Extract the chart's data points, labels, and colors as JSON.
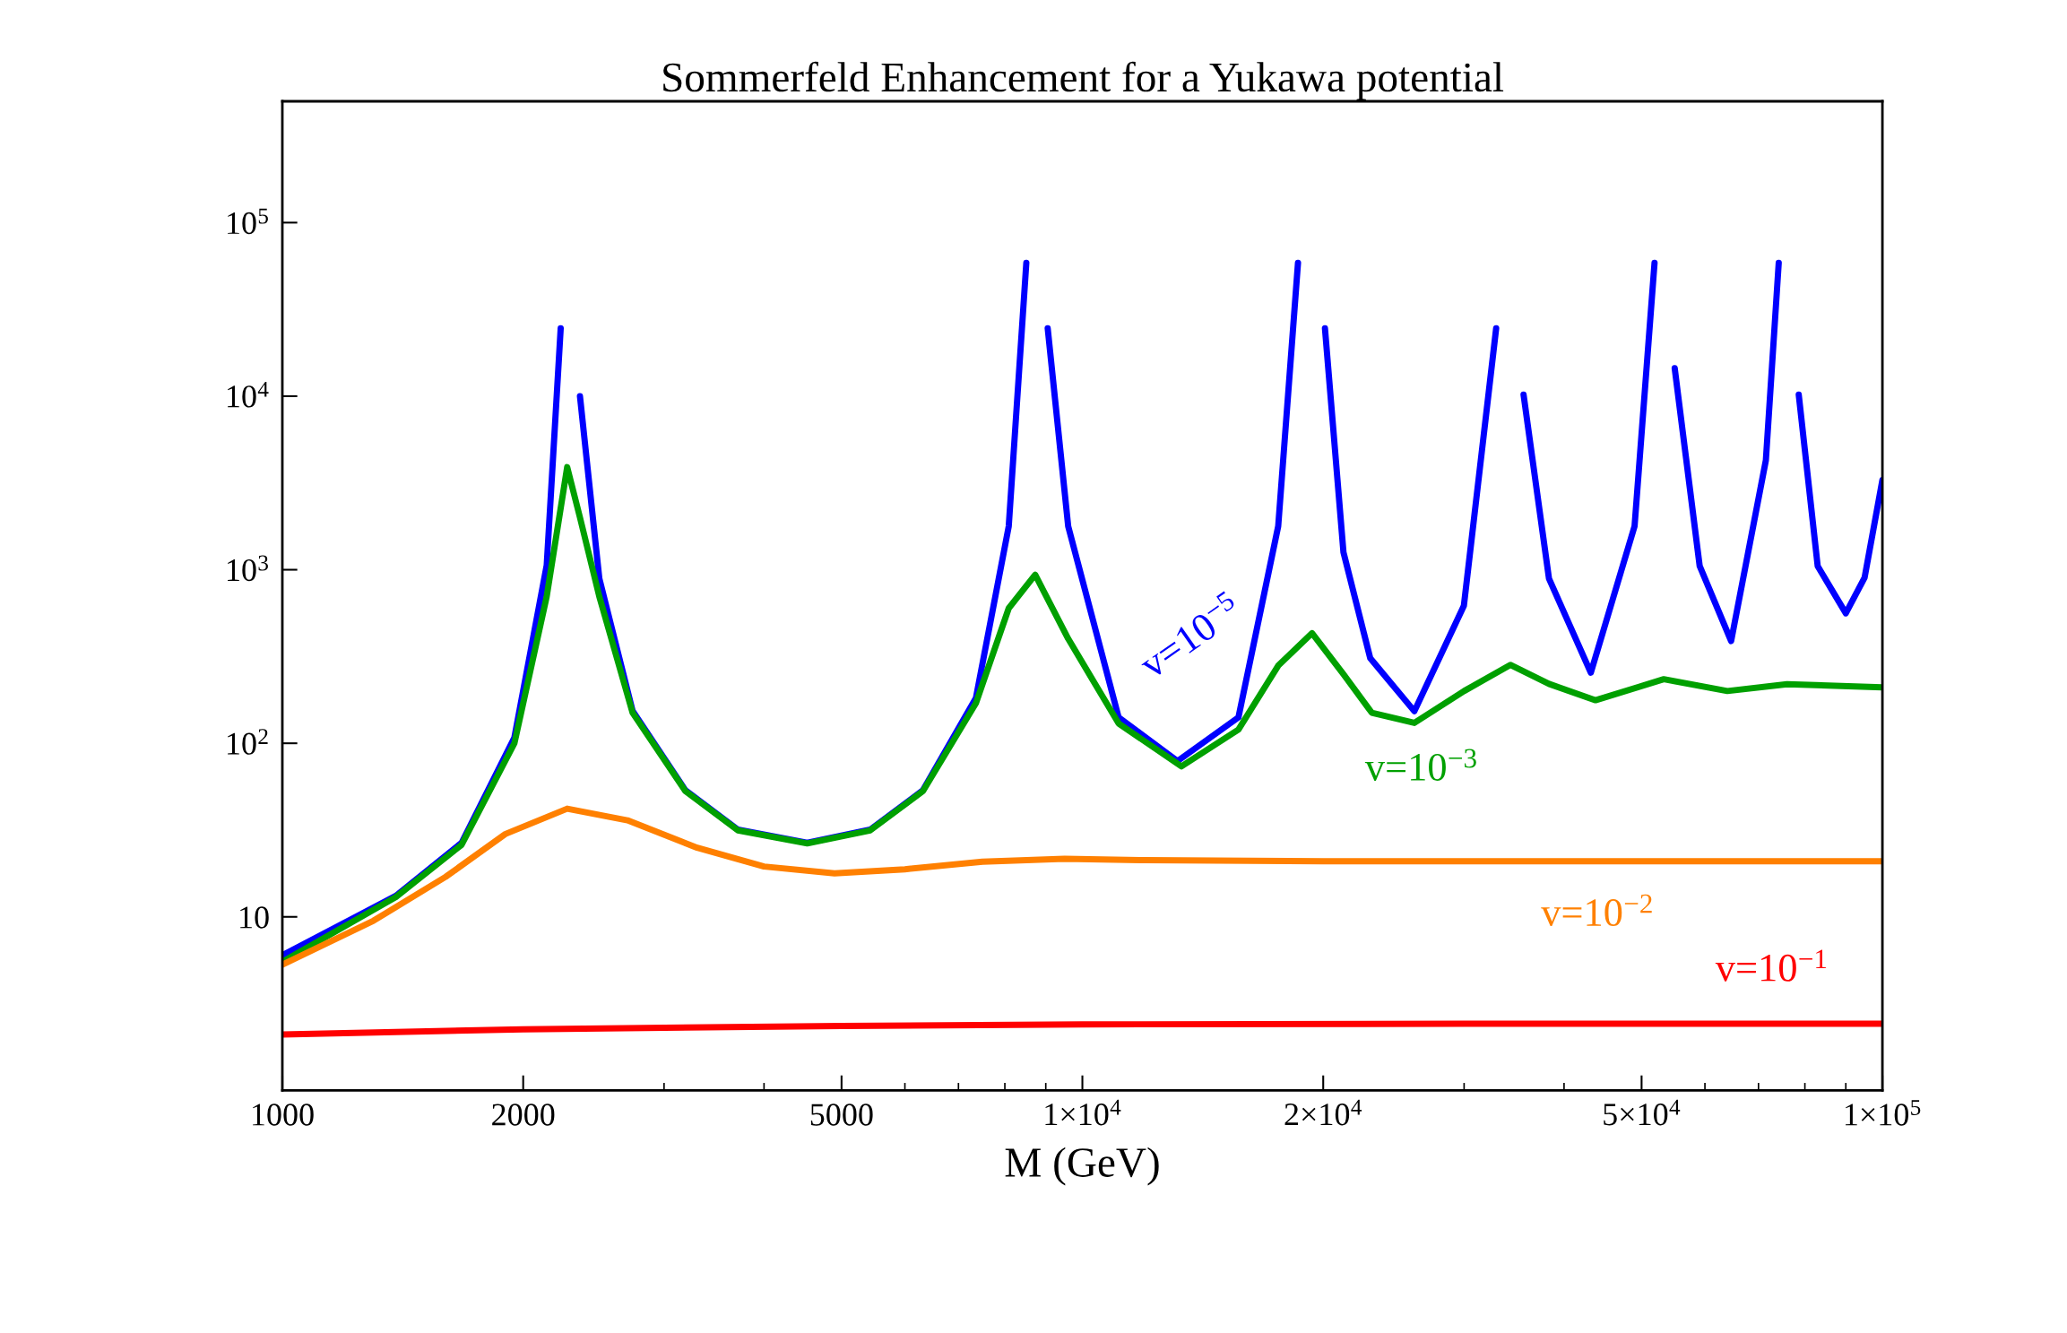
{
  "chart_data": {
    "type": "line",
    "title": "Sommerfeld Enhancement for a Yukawa potential",
    "xlabel": "M (GeV)",
    "log": "xy",
    "grid": false,
    "legend": false,
    "xlim": [
      1000,
      100000
    ],
    "ylim": [
      1,
      500000
    ],
    "xticks": [
      1000,
      2000,
      5000,
      {
        "value": 10000,
        "label": "1×10$^{4}$"
      },
      {
        "value": 20000,
        "label": "2×10$^{4}$"
      },
      {
        "value": 50000,
        "label": "5×10$^{4}$"
      },
      {
        "value": 100000,
        "label": "1×10$^{5}$"
      }
    ],
    "yticks": [
      10,
      {
        "value": 100,
        "label": "10$^{2}$"
      },
      {
        "value": 1000,
        "label": "10$^{3}$"
      },
      {
        "value": 10000,
        "label": "10$^{4}$"
      },
      {
        "value": 100000,
        "label": "10$^{5}$"
      }
    ],
    "series": [
      {
        "name": "v=10$^{−5}$",
        "color": "#0000ff",
        "x": [
          1000,
          1386,
          1675,
          1950,
          2140,
          2228,
          2270,
          2355,
          2490,
          2740,
          3190,
          3710,
          4530,
          5430,
          6320,
          7360,
          8090,
          8510,
          8730,
          9050,
          9600,
          11100,
          13150,
          15670,
          17570,
          18600,
          19370,
          20100,
          21200,
          22900,
          26000,
          29980,
          32900,
          34270,
          35600,
          38300,
          43200,
          49000,
          51900,
          53300,
          55000,
          59100,
          64700,
          71500,
          74200,
          76400,
          78600,
          83000,
          90000,
          95000,
          100000
        ],
        "values": [
          6.0,
          13.2,
          26.7,
          108,
          1060,
          24600,
          null,
          10000,
          890,
          154,
          53.6,
          31.8,
          26.7,
          31.8,
          53.6,
          182,
          1780,
          58700,
          null,
          24600,
          1780,
          141,
          79,
          141,
          1780,
          58700,
          null,
          24600,
          1260,
          309,
          153,
          620,
          24600,
          null,
          10200,
          890,
          255,
          1780,
          58700,
          null,
          14500,
          1050,
          388,
          4270,
          58700,
          null,
          10200,
          1050,
          561,
          900,
          3290
        ]
      },
      {
        "name": "v=10$^{−3}$",
        "color": "#00a000",
        "x": [
          1000,
          1386,
          1675,
          1950,
          2140,
          2270,
          2355,
          2490,
          2740,
          3190,
          3710,
          4530,
          5430,
          6320,
          7360,
          8090,
          8730,
          9600,
          11100,
          13300,
          15670,
          17570,
          19370,
          21200,
          23000,
          26000,
          30000,
          34270,
          38300,
          43800,
          53300,
          64000,
          76000,
          100000
        ],
        "values": [
          5.5,
          13.0,
          26.0,
          100,
          700,
          3900,
          2000,
          700,
          150,
          53,
          31.5,
          26.5,
          31.5,
          53,
          170,
          600,
          935,
          400,
          130,
          73.6,
          120,
          280,
          431,
          250,
          150,
          131,
          200,
          283,
          220,
          177,
          234,
          200,
          219,
          210
        ]
      },
      {
        "name": "v=10$^{−2}$",
        "color": "#ff8000",
        "x": [
          1000,
          1300,
          1600,
          1900,
          2270,
          2700,
          3300,
          4000,
          4900,
          6000,
          7500,
          9500,
          12000,
          20000,
          50000,
          100000
        ],
        "values": [
          5.3,
          9.5,
          17,
          30,
          42,
          36,
          25,
          19.5,
          17.8,
          18.8,
          20.8,
          21.6,
          21.2,
          20.9,
          20.9,
          20.9
        ]
      },
      {
        "name": "v=10$^{−1}$",
        "color": "#ff0000",
        "x": [
          1000,
          2000,
          5000,
          10000,
          30000,
          100000
        ],
        "values": [
          2.1,
          2.25,
          2.35,
          2.4,
          2.42,
          2.42
        ]
      }
    ]
  }
}
